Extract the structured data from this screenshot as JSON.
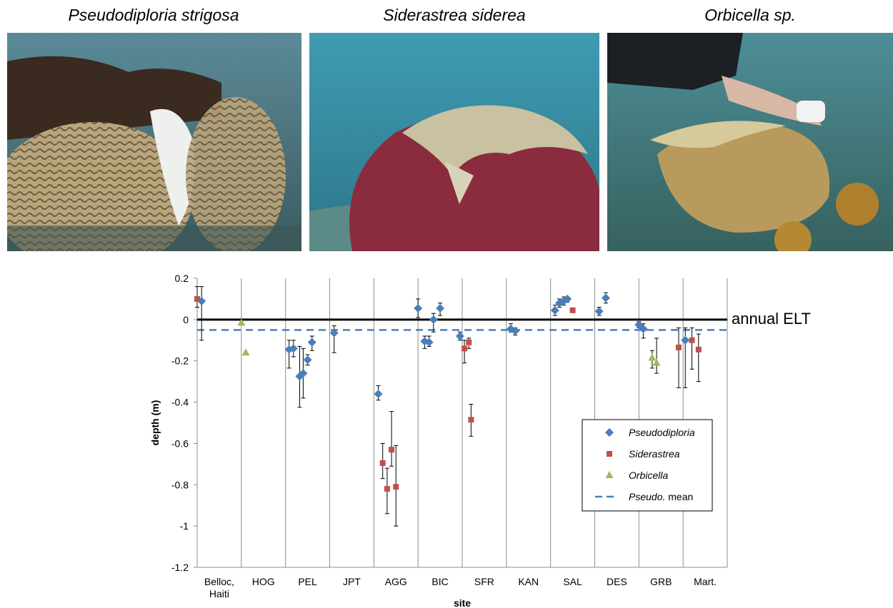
{
  "panels": [
    {
      "caption": "Pseudodiploria strigosa"
    },
    {
      "caption": "Siderastrea siderea"
    },
    {
      "caption": "Orbicella sp."
    }
  ],
  "chart_data": {
    "type": "scatter",
    "xlabel": "site",
    "ylabel": "depth (m)",
    "ylim": [
      -1.2,
      0.2
    ],
    "yticks": [
      0.2,
      0,
      -0.2,
      -0.4,
      -0.6,
      -0.8,
      -1,
      -1.2
    ],
    "ytick_labels": [
      "0.2",
      "0",
      "-0.2",
      "-0.4",
      "-0.6",
      "-0.8",
      "-1",
      "-1.2"
    ],
    "categories": [
      "Belloc, Haiti",
      "HOG",
      "PEL",
      "JPT",
      "AGG",
      "BIC",
      "SFR",
      "KAN",
      "SAL",
      "DES",
      "GRB",
      "Mart."
    ],
    "reference_line": {
      "label": "annual ELT",
      "value": 0
    },
    "mean_line": {
      "name": "Pseudo. mean",
      "value": -0.05
    },
    "legend_position": "bottom-right",
    "series": [
      {
        "name": "Pseudodiploria",
        "marker": "diamond",
        "color": "#4a7ebb",
        "points": [
          {
            "site": "Belloc, Haiti",
            "x": 0.1,
            "y": 0.09,
            "err_hi": 0.16,
            "err_lo": -0.1
          },
          {
            "site": "PEL",
            "x": 0.08,
            "y": -0.145,
            "err_hi": -0.1,
            "err_lo": -0.235
          },
          {
            "site": "PEL",
            "x": 0.18,
            "y": -0.14,
            "err_hi": -0.1,
            "err_lo": -0.18
          },
          {
            "site": "PEL",
            "x": 0.32,
            "y": -0.275,
            "err_hi": -0.13,
            "err_lo": -0.425
          },
          {
            "site": "PEL",
            "x": 0.4,
            "y": -0.26,
            "err_hi": -0.14,
            "err_lo": -0.38
          },
          {
            "site": "PEL",
            "x": 0.5,
            "y": -0.195,
            "err_hi": -0.17,
            "err_lo": -0.22
          },
          {
            "site": "PEL",
            "x": 0.6,
            "y": -0.11,
            "err_hi": -0.08,
            "err_lo": -0.15
          },
          {
            "site": "JPT",
            "x": 0.1,
            "y": -0.065,
            "err_hi": -0.03,
            "err_lo": -0.16
          },
          {
            "site": "AGG",
            "x": 0.1,
            "y": -0.36,
            "err_hi": -0.32,
            "err_lo": -0.39
          },
          {
            "site": "BIC",
            "x": 0.0,
            "y": 0.055,
            "err_hi": 0.1,
            "err_lo": 0.01
          },
          {
            "site": "BIC",
            "x": 0.15,
            "y": -0.105,
            "err_hi": -0.08,
            "err_lo": -0.14
          },
          {
            "site": "BIC",
            "x": 0.25,
            "y": -0.11,
            "err_hi": -0.08,
            "err_lo": -0.13
          },
          {
            "site": "BIC",
            "x": 0.35,
            "y": 0.0,
            "err_hi": 0.03,
            "err_lo": -0.06
          },
          {
            "site": "BIC",
            "x": 0.5,
            "y": 0.055,
            "err_hi": 0.08,
            "err_lo": 0.02
          },
          {
            "site": "SFR",
            "x": -0.05,
            "y": -0.08,
            "err_hi": -0.06,
            "err_lo": -0.1
          },
          {
            "site": "KAN",
            "x": 0.1,
            "y": -0.045,
            "err_hi": -0.02,
            "err_lo": -0.06
          },
          {
            "site": "KAN",
            "x": 0.2,
            "y": -0.055,
            "err_hi": -0.04,
            "err_lo": -0.075
          },
          {
            "site": "SAL",
            "x": 0.1,
            "y": 0.045,
            "err_hi": 0.07,
            "err_lo": 0.02
          },
          {
            "site": "SAL",
            "x": 0.2,
            "y": 0.08,
            "err_hi": 0.1,
            "err_lo": 0.06
          },
          {
            "site": "SAL",
            "x": 0.3,
            "y": 0.09,
            "err_hi": 0.11,
            "err_lo": 0.07
          },
          {
            "site": "SAL",
            "x": 0.38,
            "y": 0.1,
            "err_hi": 0.11,
            "err_lo": 0.085
          },
          {
            "site": "DES",
            "x": 0.1,
            "y": 0.04,
            "err_hi": 0.06,
            "err_lo": 0.02
          },
          {
            "site": "DES",
            "x": 0.25,
            "y": 0.105,
            "err_hi": 0.13,
            "err_lo": 0.08
          },
          {
            "site": "GRB",
            "x": 0.0,
            "y": -0.025,
            "err_hi": -0.01,
            "err_lo": -0.04
          },
          {
            "site": "GRB",
            "x": 0.1,
            "y": -0.045,
            "err_hi": -0.02,
            "err_lo": -0.09
          },
          {
            "site": "Mart.",
            "x": 0.05,
            "y": -0.1,
            "err_hi": -0.04,
            "err_lo": -0.33
          }
        ]
      },
      {
        "name": "Siderastrea",
        "marker": "square",
        "color": "#c0504d",
        "points": [
          {
            "site": "Belloc, Haiti",
            "x": 0.0,
            "y": 0.1,
            "err_hi": 0.16,
            "err_lo": 0.06
          },
          {
            "site": "AGG",
            "x": 0.2,
            "y": -0.695,
            "err_hi": -0.6,
            "err_lo": -0.77
          },
          {
            "site": "AGG",
            "x": 0.3,
            "y": -0.82,
            "err_hi": -0.72,
            "err_lo": -0.94
          },
          {
            "site": "AGG",
            "x": 0.4,
            "y": -0.63,
            "err_hi": -0.445,
            "err_lo": -0.71
          },
          {
            "site": "AGG",
            "x": 0.5,
            "y": -0.81,
            "err_hi": -0.61,
            "err_lo": -1.0
          },
          {
            "site": "SFR",
            "x": 0.05,
            "y": -0.14,
            "err_hi": -0.1,
            "err_lo": -0.21
          },
          {
            "site": "SFR",
            "x": 0.15,
            "y": -0.11,
            "err_hi": -0.09,
            "err_lo": -0.14
          },
          {
            "site": "SFR",
            "x": 0.2,
            "y": -0.485,
            "err_hi": -0.41,
            "err_lo": -0.565
          },
          {
            "site": "SAL",
            "x": 0.5,
            "y": 0.045,
            "err_hi": 0.055,
            "err_lo": 0.035
          },
          {
            "site": "Mart.",
            "x": -0.1,
            "y": -0.135,
            "err_hi": -0.04,
            "err_lo": -0.33
          },
          {
            "site": "Mart.",
            "x": 0.2,
            "y": -0.1,
            "err_hi": -0.04,
            "err_lo": -0.24
          },
          {
            "site": "Mart.",
            "x": 0.35,
            "y": -0.145,
            "err_hi": -0.07,
            "err_lo": -0.3
          }
        ]
      },
      {
        "name": "Orbicella",
        "marker": "triangle",
        "color": "#9bbb59",
        "points": [
          {
            "site": "HOG",
            "x": 0.0,
            "y": -0.015
          },
          {
            "site": "HOG",
            "x": 0.1,
            "y": -0.16
          },
          {
            "site": "GRB",
            "x": 0.3,
            "y": -0.185,
            "err_hi": -0.15,
            "err_lo": -0.235
          },
          {
            "site": "GRB",
            "x": 0.4,
            "y": -0.21,
            "err_hi": -0.09,
            "err_lo": -0.26
          }
        ]
      }
    ]
  }
}
